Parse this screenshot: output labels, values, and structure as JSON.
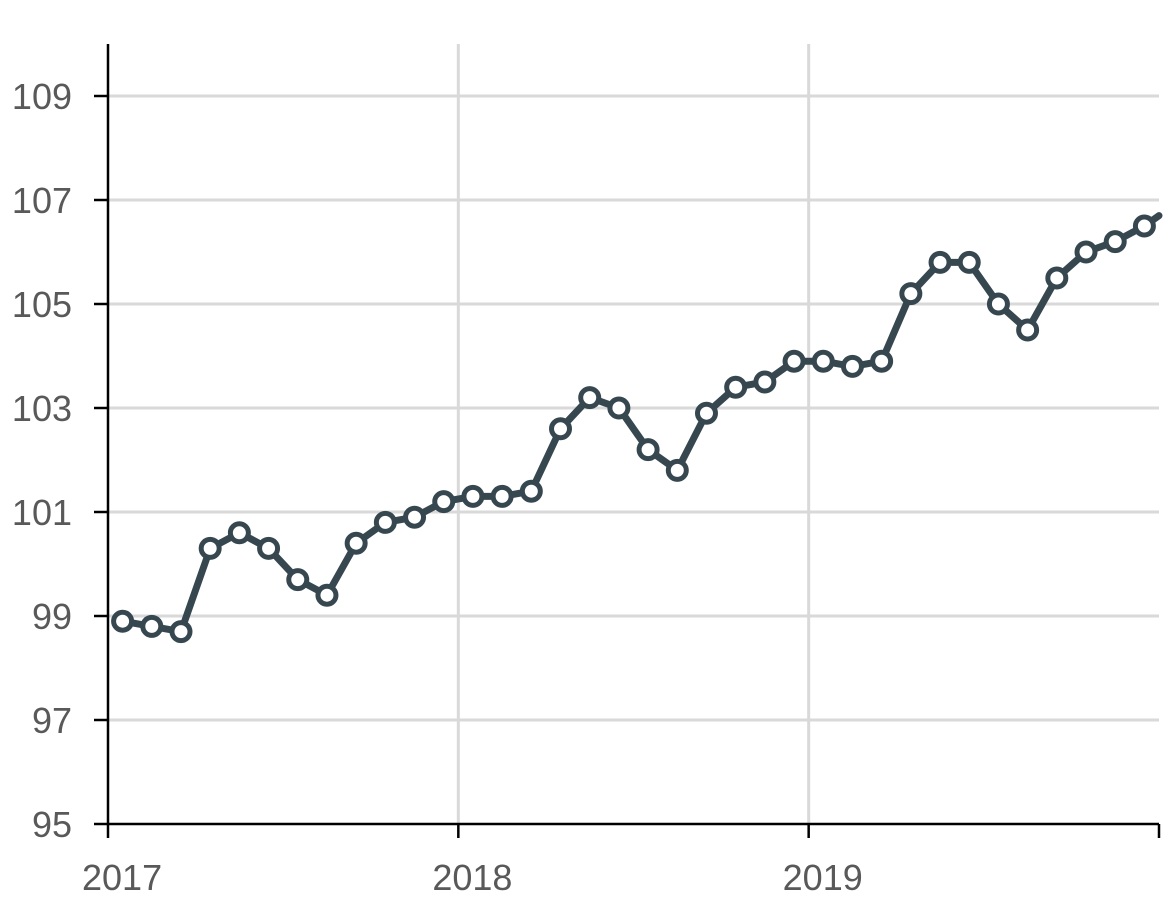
{
  "chart_data": {
    "type": "line",
    "title": "",
    "xlabel": "",
    "ylabel": "",
    "x_tick_labels": [
      "2017",
      "2018",
      "2019"
    ],
    "y_tick_labels": [
      "95",
      "97",
      "99",
      "101",
      "103",
      "105",
      "107",
      "109"
    ],
    "xlim": [
      "2017-01",
      "2020-01"
    ],
    "ylim": [
      95,
      110
    ],
    "grid": true,
    "legend": "none",
    "series": [
      {
        "x": [
          "2017-01",
          "2017-02",
          "2017-03",
          "2017-04",
          "2017-05",
          "2017-06",
          "2017-07",
          "2017-08",
          "2017-09",
          "2017-10",
          "2017-11",
          "2017-12",
          "2018-01",
          "2018-02",
          "2018-03",
          "2018-04",
          "2018-05",
          "2018-06",
          "2018-07",
          "2018-08",
          "2018-09",
          "2018-10",
          "2018-11",
          "2018-12",
          "2019-01",
          "2019-02",
          "2019-03",
          "2019-04",
          "2019-05",
          "2019-06",
          "2019-07",
          "2019-08",
          "2019-09",
          "2019-10",
          "2019-11",
          "2019-12"
        ],
        "values": [
          98.9,
          98.8,
          98.7,
          100.3,
          100.6,
          100.3,
          99.7,
          99.4,
          100.4,
          100.8,
          100.9,
          101.2,
          101.3,
          101.3,
          101.4,
          102.6,
          103.2,
          103.0,
          102.2,
          101.8,
          102.9,
          103.4,
          103.5,
          103.9,
          103.9,
          103.8,
          103.9,
          105.2,
          105.8,
          105.8,
          105.0,
          104.5,
          105.5,
          106.0,
          106.2,
          106.5
        ],
        "next_value": 106.9
      }
    ],
    "colors": {
      "line": "#37474f",
      "marker_fill": "#ffffff",
      "grid": "#d9d9d9",
      "axis": "#000000",
      "tick_text": "#595959"
    }
  }
}
